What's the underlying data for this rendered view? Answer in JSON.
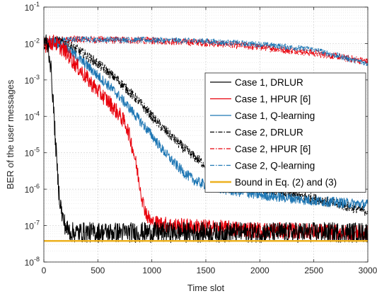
{
  "chart_data": {
    "type": "line",
    "xlabel": "Time slot",
    "ylabel": "BER of the user messages",
    "xscale": "linear",
    "yscale": "log",
    "xlim": [
      0,
      3000
    ],
    "ylim": [
      1e-08,
      0.1
    ],
    "x_ticks": [
      0,
      500,
      1000,
      1500,
      2000,
      2500,
      3000
    ],
    "x_tick_labels": [
      "0",
      "500",
      "1000",
      "1500",
      "2000",
      "2500",
      "3000"
    ],
    "y_ticks": [
      1e-08,
      1e-07,
      1e-06,
      1e-05,
      0.0001,
      0.001,
      0.01,
      0.1
    ],
    "y_tick_labels": [
      {
        "base": "10",
        "exp": "-8"
      },
      {
        "base": "10",
        "exp": "-7"
      },
      {
        "base": "10",
        "exp": "-6"
      },
      {
        "base": "10",
        "exp": "-5"
      },
      {
        "base": "10",
        "exp": "-4"
      },
      {
        "base": "10",
        "exp": "-3"
      },
      {
        "base": "10",
        "exp": "-2"
      },
      {
        "base": "10",
        "exp": "-1"
      }
    ],
    "grid": true,
    "minor_grid": true,
    "legend_position": "right",
    "series": [
      {
        "name": "Case 1, DRLUR",
        "color": "#000000",
        "dash": "solid",
        "noise": 0.28,
        "points": [
          [
            0,
            0.012
          ],
          [
            20,
            0.011
          ],
          [
            40,
            0.008
          ],
          [
            60,
            0.003
          ],
          [
            80,
            0.0005
          ],
          [
            100,
            5e-05
          ],
          [
            120,
            5e-06
          ],
          [
            140,
            8e-07
          ],
          [
            170,
            1.8e-07
          ],
          [
            210,
            8e-08
          ],
          [
            260,
            6.5e-08
          ],
          [
            3000,
            6.5e-08
          ]
        ]
      },
      {
        "name": "Case 1, HPUR [6]",
        "color": "#e8000b",
        "dash": "solid",
        "noise": 0.22,
        "points": [
          [
            0,
            0.009
          ],
          [
            100,
            0.011
          ],
          [
            200,
            0.006
          ],
          [
            300,
            0.0025
          ],
          [
            400,
            0.0011
          ],
          [
            500,
            0.0005
          ],
          [
            600,
            0.00025
          ],
          [
            700,
            0.00011
          ],
          [
            760,
            6e-05
          ],
          [
            800,
            2.5e-05
          ],
          [
            840,
            8e-06
          ],
          [
            880,
            1.8e-06
          ],
          [
            920,
            4e-07
          ],
          [
            960,
            1.8e-07
          ],
          [
            1000,
            1.2e-07
          ],
          [
            1200,
            1e-07
          ],
          [
            1500,
            9e-08
          ],
          [
            2000,
            7.5e-08
          ],
          [
            2500,
            7e-08
          ],
          [
            3000,
            6e-08
          ]
        ]
      },
      {
        "name": "Case 1, Q-learning",
        "color": "#1f77b4",
        "dash": "solid",
        "noise": 0.14,
        "points": [
          [
            0,
            0.009
          ],
          [
            100,
            0.011
          ],
          [
            200,
            0.008
          ],
          [
            300,
            0.0045
          ],
          [
            400,
            0.0025
          ],
          [
            500,
            0.0013
          ],
          [
            600,
            0.0007
          ],
          [
            700,
            0.00035
          ],
          [
            800,
            0.00016
          ],
          [
            900,
            7e-05
          ],
          [
            1000,
            3e-05
          ],
          [
            1100,
            1.2e-05
          ],
          [
            1200,
            5.5e-06
          ],
          [
            1300,
            2.8e-06
          ],
          [
            1400,
            1.7e-06
          ],
          [
            1500,
            1.3e-06
          ],
          [
            1700,
            9.5e-07
          ],
          [
            2000,
            7e-07
          ],
          [
            2500,
            4.8e-07
          ],
          [
            3000,
            3.8e-07
          ]
        ]
      },
      {
        "name": "Case 2, DRLUR",
        "color": "#000000",
        "dash": "dashdot",
        "noise": 0.14,
        "points": [
          [
            0,
            0.009
          ],
          [
            100,
            0.012
          ],
          [
            200,
            0.01
          ],
          [
            300,
            0.007
          ],
          [
            400,
            0.0045
          ],
          [
            500,
            0.0028
          ],
          [
            600,
            0.0016
          ],
          [
            700,
            0.0009
          ],
          [
            800,
            0.00045
          ],
          [
            900,
            0.00022
          ],
          [
            1000,
            0.0001
          ],
          [
            1100,
            4.8e-05
          ],
          [
            1200,
            2.5e-05
          ],
          [
            1300,
            1.3e-05
          ],
          [
            1400,
            7.5e-06
          ],
          [
            1500,
            4.5e-06
          ],
          [
            1700,
            2.2e-06
          ],
          [
            2000,
            1.1e-06
          ],
          [
            2500,
            5.5e-07
          ],
          [
            3000,
            2.5e-07
          ]
        ]
      },
      {
        "name": "Case 2, HPUR [6]",
        "color": "#e8000b",
        "dash": "dashdot",
        "noise": 0.1,
        "points": [
          [
            0,
            0.012
          ],
          [
            300,
            0.013
          ],
          [
            1000,
            0.012
          ],
          [
            1500,
            0.0105
          ],
          [
            2000,
            0.008
          ],
          [
            2500,
            0.0055
          ],
          [
            3000,
            0.0032
          ]
        ]
      },
      {
        "name": "Case 2, Q-learning",
        "color": "#1f77b4",
        "dash": "dashdot",
        "noise": 0.08,
        "points": [
          [
            0,
            0.012
          ],
          [
            300,
            0.013
          ],
          [
            1000,
            0.0125
          ],
          [
            1500,
            0.0115
          ],
          [
            2000,
            0.0095
          ],
          [
            2500,
            0.0068
          ],
          [
            3000,
            0.0028
          ]
        ]
      },
      {
        "name": "Bound in Eq. (2) and (3)",
        "color": "#edb120",
        "dash": "solid",
        "noise": 0,
        "width": 2.5,
        "points": [
          [
            0,
            3.8e-08
          ],
          [
            3000,
            3.8e-08
          ]
        ]
      }
    ]
  }
}
